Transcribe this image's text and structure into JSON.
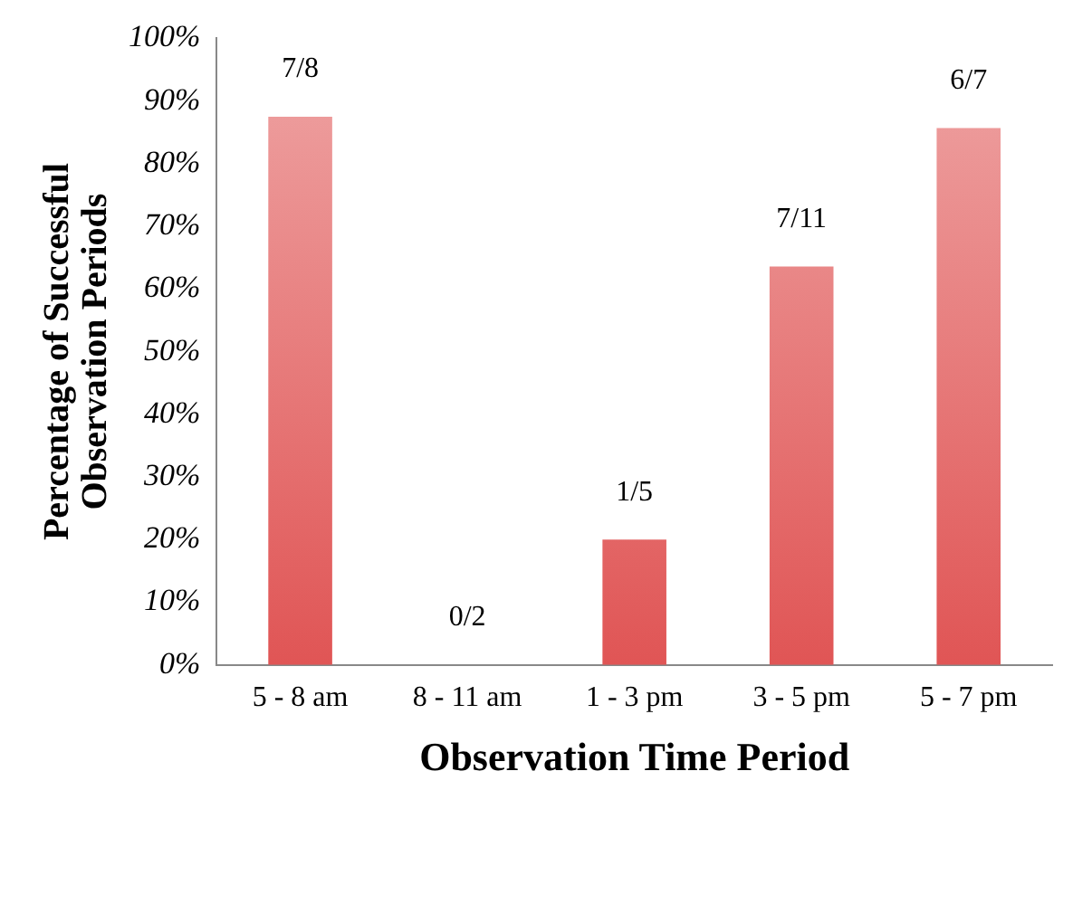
{
  "chart_data": {
    "type": "bar",
    "xlabel": "Observation Time Period",
    "ylabel": "Percentage of Successful Observation Periods",
    "categories": [
      "5 - 8 am",
      "8 - 11 am",
      "1 - 3 pm",
      "3 - 5 pm",
      "5 - 7 pm"
    ],
    "values": [
      87.5,
      0,
      20,
      63.6,
      85.7
    ],
    "annotations": [
      {
        "text": "7/8",
        "x": "5 - 8 am",
        "y": 87.5
      },
      {
        "text": "0/2",
        "x": "8 - 11 am",
        "y": 0
      },
      {
        "text": "1/5",
        "x": "1 - 3 pm",
        "y": 20
      },
      {
        "text": "7/11",
        "x": "3 - 5 pm",
        "y": 63.6
      },
      {
        "text": "6/7",
        "x": "5 - 7 pm",
        "y": 85.7
      }
    ],
    "color": "#e05555",
    "ylim": [
      0,
      100
    ],
    "yticks": [
      {
        "value": 0,
        "label": "0%"
      },
      {
        "value": 10,
        "label": "10%"
      },
      {
        "value": 20,
        "label": "20%"
      },
      {
        "value": 30,
        "label": "30%"
      },
      {
        "value": 40,
        "label": "40%"
      },
      {
        "value": 50,
        "label": "50%"
      },
      {
        "value": 60,
        "label": "60%"
      },
      {
        "value": 70,
        "label": "70%"
      },
      {
        "value": 80,
        "label": "80%"
      },
      {
        "value": 90,
        "label": "90%"
      },
      {
        "value": 100,
        "label": "100%"
      }
    ],
    "grid": false,
    "legend": false
  }
}
